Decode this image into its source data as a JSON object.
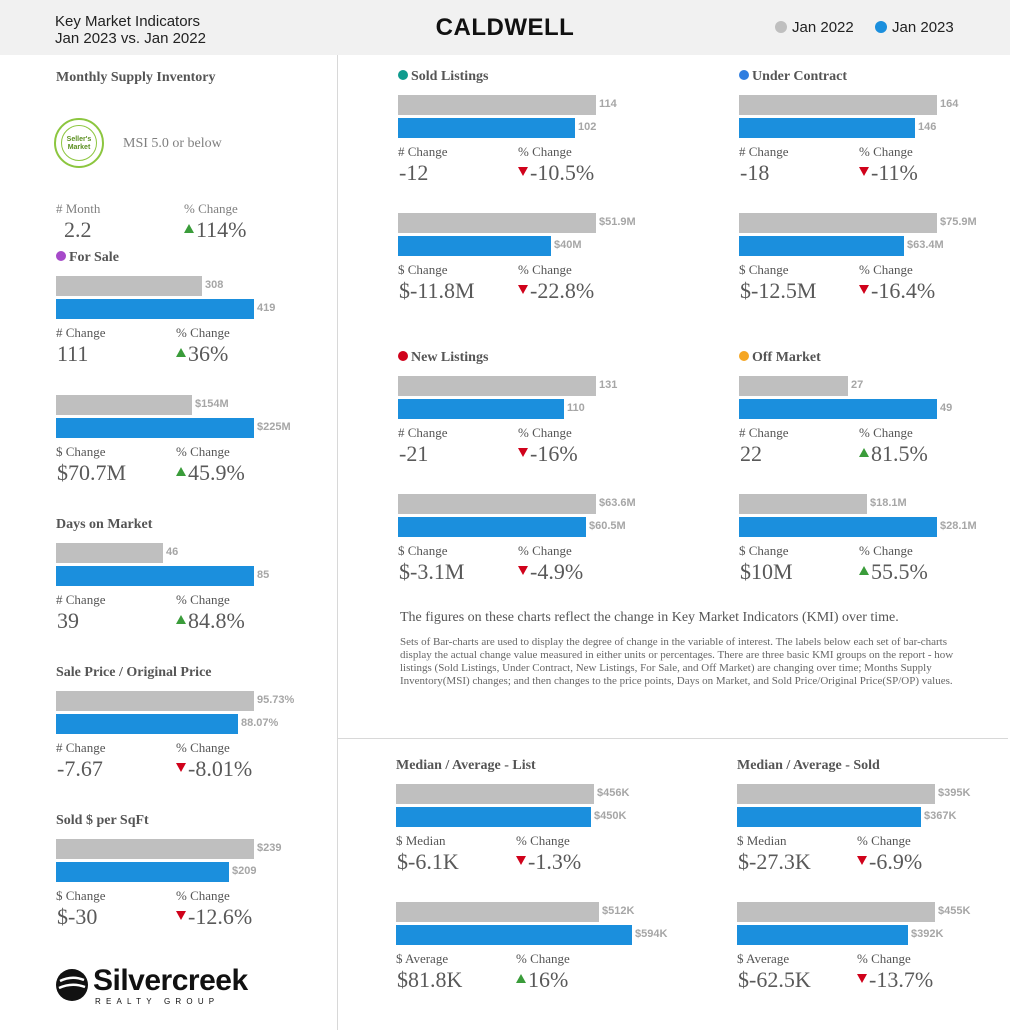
{
  "header": {
    "subtitle_line1": "Key Market Indicators",
    "subtitle_line2": "Jan 2023 vs. Jan 2022",
    "title": "CALDWELL",
    "legend": [
      {
        "label": "Jan 2022",
        "color": "#bfbfbf"
      },
      {
        "label": "Jan 2023",
        "color": "#1b8fdd"
      }
    ]
  },
  "colors": {
    "prev": "#bfbfbf",
    "cur": "#1b8fdd",
    "up": "#3a9c3a",
    "down": "#d0021b"
  },
  "msi": {
    "title": "Monthly Supply Inventory",
    "badge_line1": "Seller's",
    "badge_line2": "Market",
    "note": "MSI 5.0 or below",
    "month_label": "# Month",
    "month_value": "2.2",
    "pct_label": "% Change",
    "pct_value": "114%",
    "pct_dir": "up"
  },
  "description": {
    "main": "The figures on these charts reflect the change in Key Market Indicators (KMI) over time.",
    "detail": "Sets of Bar-charts are used to display the degree of change in the variable of interest. The labels below each set of bar-charts display the actual change value measured in either units or percentages. There are three basic KMI groups on the report - how listings (Sold Listings, Under Contract, New Listings, For Sale, and Off Market) are changing over time; Months Supply Inventory(MSI) changes; and then changes to the price points, Days on Market, and Sold Price/Original Price(SP/OP) values."
  },
  "logo": {
    "name": "Silvercreek",
    "sub": "REALTY GROUP"
  },
  "chart_data": [
    {
      "type": "bar",
      "title": "For Sale",
      "title_dot": "#a64ac9",
      "categories": [
        "Jan 2022",
        "Jan 2023"
      ],
      "values": [
        308,
        419
      ],
      "value_labels": [
        "308",
        "419"
      ],
      "change_label": "# Change",
      "change_value": "111",
      "pct_label": "% Change",
      "pct_value": "36%",
      "pct_dir": "up"
    },
    {
      "type": "bar",
      "title": "",
      "categories": [
        "Jan 2022",
        "Jan 2023"
      ],
      "values": [
        154,
        225
      ],
      "value_labels": [
        "$154M",
        "$225M"
      ],
      "change_label": "$ Change",
      "change_value": "$70.7M",
      "pct_label": "% Change",
      "pct_value": "45.9%",
      "pct_dir": "up"
    },
    {
      "type": "bar",
      "title": "Days on Market",
      "categories": [
        "Jan 2022",
        "Jan 2023"
      ],
      "values": [
        46,
        85
      ],
      "value_labels": [
        "46",
        "85"
      ],
      "change_label": "# Change",
      "change_value": "39",
      "pct_label": "% Change",
      "pct_value": "84.8%",
      "pct_dir": "up"
    },
    {
      "type": "bar",
      "title": "Sale Price / Original Price",
      "categories": [
        "Jan 2022",
        "Jan 2023"
      ],
      "values": [
        95.73,
        88.07
      ],
      "value_labels": [
        "95.73%",
        "88.07%"
      ],
      "change_label": "# Change",
      "change_value": "-7.67",
      "pct_label": "% Change",
      "pct_value": "-8.01%",
      "pct_dir": "down"
    },
    {
      "type": "bar",
      "title": "Sold $ per SqFt",
      "categories": [
        "Jan 2022",
        "Jan 2023"
      ],
      "values": [
        239,
        209
      ],
      "value_labels": [
        "$239",
        "$209"
      ],
      "change_label": "$ Change",
      "change_value": "$-30",
      "pct_label": "% Change",
      "pct_value": "-12.6%",
      "pct_dir": "down"
    },
    {
      "type": "bar",
      "title": "Sold Listings",
      "title_dot": "#0f9b8e",
      "categories": [
        "Jan 2022",
        "Jan 2023"
      ],
      "values": [
        114,
        102
      ],
      "value_labels": [
        "114",
        "102"
      ],
      "change_label": "# Change",
      "change_value": "-12",
      "pct_label": "% Change",
      "pct_value": "-10.5%",
      "pct_dir": "down"
    },
    {
      "type": "bar",
      "title": "",
      "categories": [
        "Jan 2022",
        "Jan 2023"
      ],
      "values": [
        51.9,
        40
      ],
      "value_labels": [
        "$51.9M",
        "$40M"
      ],
      "change_label": "$ Change",
      "change_value": "$-11.8M",
      "pct_label": "% Change",
      "pct_value": "-22.8%",
      "pct_dir": "down"
    },
    {
      "type": "bar",
      "title": "Under Contract",
      "title_dot": "#2f7ee0",
      "categories": [
        "Jan 2022",
        "Jan 2023"
      ],
      "values": [
        164,
        146
      ],
      "value_labels": [
        "164",
        "146"
      ],
      "change_label": "# Change",
      "change_value": "-18",
      "pct_label": "% Change",
      "pct_value": "-11%",
      "pct_dir": "down"
    },
    {
      "type": "bar",
      "title": "",
      "categories": [
        "Jan 2022",
        "Jan 2023"
      ],
      "values": [
        75.9,
        63.4
      ],
      "value_labels": [
        "$75.9M",
        "$63.4M"
      ],
      "change_label": "$ Change",
      "change_value": "$-12.5M",
      "pct_label": "% Change",
      "pct_value": "-16.4%",
      "pct_dir": "down"
    },
    {
      "type": "bar",
      "title": "New Listings",
      "title_dot": "#d0021b",
      "categories": [
        "Jan 2022",
        "Jan 2023"
      ],
      "values": [
        131,
        110
      ],
      "value_labels": [
        "131",
        "110"
      ],
      "change_label": "# Change",
      "change_value": "-21",
      "pct_label": "% Change",
      "pct_value": "-16%",
      "pct_dir": "down"
    },
    {
      "type": "bar",
      "title": "",
      "categories": [
        "Jan 2022",
        "Jan 2023"
      ],
      "values": [
        63.6,
        60.5
      ],
      "value_labels": [
        "$63.6M",
        "$60.5M"
      ],
      "change_label": "$ Change",
      "change_value": "$-3.1M",
      "pct_label": "% Change",
      "pct_value": "-4.9%",
      "pct_dir": "down"
    },
    {
      "type": "bar",
      "title": "Off Market",
      "title_dot": "#f5a623",
      "categories": [
        "Jan 2022",
        "Jan 2023"
      ],
      "values": [
        27,
        49
      ],
      "value_labels": [
        "27",
        "49"
      ],
      "change_label": "# Change",
      "change_value": "22",
      "pct_label": "% Change",
      "pct_value": "81.5%",
      "pct_dir": "up"
    },
    {
      "type": "bar",
      "title": "",
      "categories": [
        "Jan 2022",
        "Jan 2023"
      ],
      "values": [
        18.1,
        28.1
      ],
      "value_labels": [
        "$18.1M",
        "$28.1M"
      ],
      "change_label": "$ Change",
      "change_value": "$10M",
      "pct_label": "% Change",
      "pct_value": "55.5%",
      "pct_dir": "up"
    },
    {
      "type": "bar",
      "title": "Median / Average - List",
      "categories": [
        "Jan 2022",
        "Jan 2023"
      ],
      "values": [
        456,
        450
      ],
      "value_labels": [
        "$456K",
        "$450K"
      ],
      "change_label": "$ Median",
      "change_value": "$-6.1K",
      "pct_label": "% Change",
      "pct_value": "-1.3%",
      "pct_dir": "down"
    },
    {
      "type": "bar",
      "title": "",
      "categories": [
        "Jan 2022",
        "Jan 2023"
      ],
      "values": [
        512,
        594
      ],
      "value_labels": [
        "$512K",
        "$594K"
      ],
      "change_label": "$ Average",
      "change_value": "$81.8K",
      "pct_label": "% Change",
      "pct_value": "16%",
      "pct_dir": "up"
    },
    {
      "type": "bar",
      "title": "Median / Average - Sold",
      "categories": [
        "Jan 2022",
        "Jan 2023"
      ],
      "values": [
        395,
        367
      ],
      "value_labels": [
        "$395K",
        "$367K"
      ],
      "change_label": "$ Median",
      "change_value": "$-27.3K",
      "pct_label": "% Change",
      "pct_value": "-6.9%",
      "pct_dir": "down"
    },
    {
      "type": "bar",
      "title": "",
      "categories": [
        "Jan 2022",
        "Jan 2023"
      ],
      "values": [
        455,
        392
      ],
      "value_labels": [
        "$455K",
        "$392K"
      ],
      "change_label": "$ Average",
      "change_value": "$-62.5K",
      "pct_label": "% Change",
      "pct_value": "-13.7%",
      "pct_dir": "down"
    }
  ]
}
